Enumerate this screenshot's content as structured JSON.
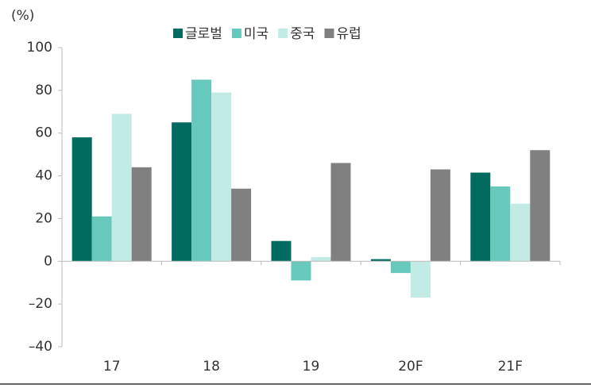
{
  "chart_data": {
    "type": "bar",
    "y_label": "(%)",
    "categories": [
      "17",
      "18",
      "19",
      "20F",
      "21F"
    ],
    "series": [
      {
        "name": "글로벌",
        "color": "#006b5e",
        "values": [
          58,
          65,
          9.5,
          1,
          41.5
        ]
      },
      {
        "name": "미국",
        "color": "#66c9bb",
        "values": [
          21,
          85,
          -9,
          -5.5,
          35
        ]
      },
      {
        "name": "중국",
        "color": "#c2ebe5",
        "values": [
          69,
          79,
          2,
          -17,
          27
        ]
      },
      {
        "name": "유럽",
        "color": "#808080",
        "values": [
          44,
          34,
          46,
          43,
          52
        ]
      }
    ],
    "ylim": [
      -40,
      100
    ],
    "yticks": [
      {
        "value": -40,
        "label": "–40"
      },
      {
        "value": -20,
        "label": "–20"
      },
      0,
      20,
      40,
      60,
      80,
      100
    ],
    "grid": false,
    "legend": "top"
  }
}
